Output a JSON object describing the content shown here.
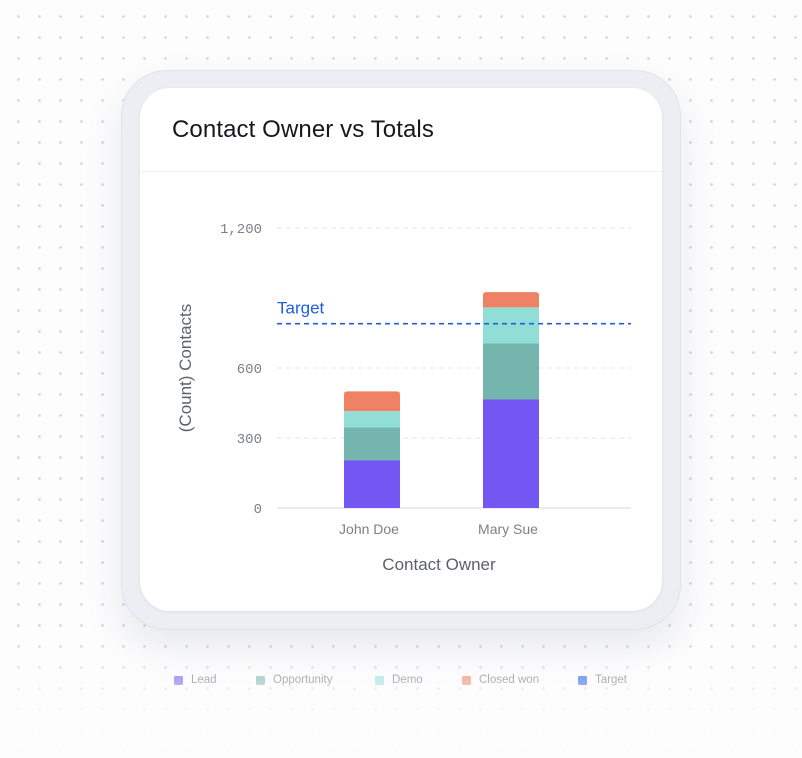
{
  "card": {
    "title": "Contact Owner vs Totals"
  },
  "chart_data": {
    "type": "bar",
    "stacked": true,
    "title": "Contact Owner vs Totals",
    "xlabel": "Contact Owner",
    "ylabel": "(Count) Contacts",
    "categories": [
      "John Doe",
      "Mary Sue"
    ],
    "ylim": [
      0,
      1200
    ],
    "yticks": [
      0,
      300,
      600,
      1200
    ],
    "ytick_labels": [
      "0",
      "300",
      "600",
      "1,200"
    ],
    "grid": true,
    "series": [
      {
        "name": "Lead",
        "color": "#7357f2",
        "values": [
          205,
          465
        ]
      },
      {
        "name": "Opportunity",
        "color": "#74b5ad",
        "values": [
          140,
          240
        ]
      },
      {
        "name": "Demo",
        "color": "#91ded7",
        "values": [
          70,
          155
        ]
      },
      {
        "name": "Closed won",
        "color": "#ef8165",
        "values": [
          85,
          65
        ]
      }
    ],
    "reference_line": {
      "name": "Target",
      "label": "Target",
      "value": 790,
      "color": "#1f5ede"
    },
    "legend": {
      "position": "bottom",
      "items": [
        {
          "label": "Lead",
          "color": "#7357f2"
        },
        {
          "label": "Opportunity",
          "color": "#74b5ad"
        },
        {
          "label": "Demo",
          "color": "#91ded7"
        },
        {
          "label": "Closed won",
          "color": "#ef8165"
        },
        {
          "label": "Target",
          "color": "#1f5ede"
        }
      ]
    }
  }
}
